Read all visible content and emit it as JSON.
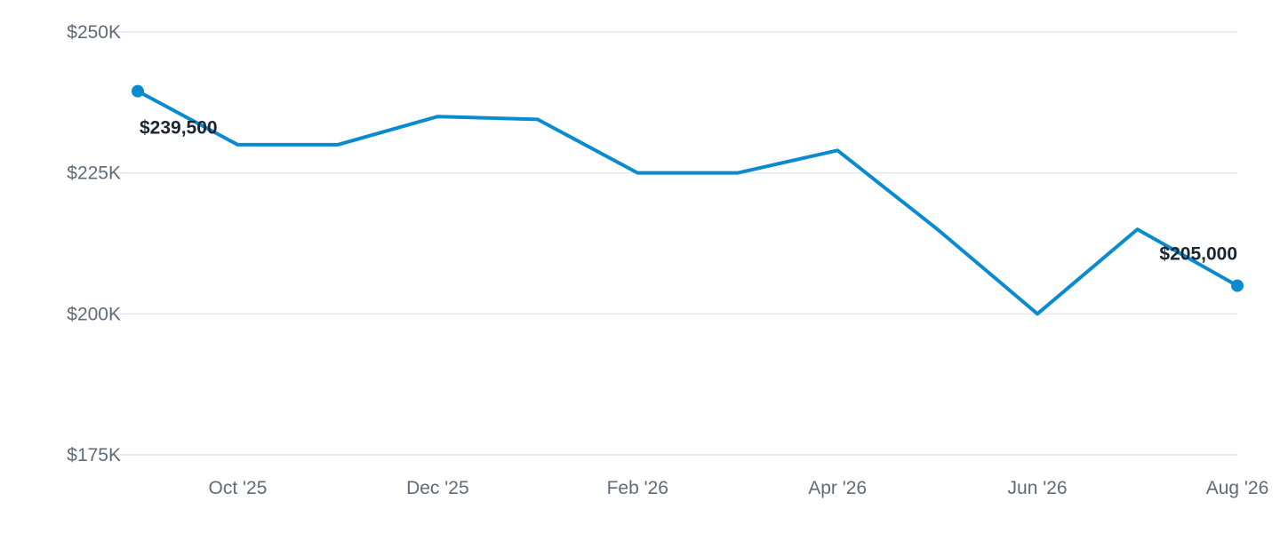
{
  "chart_data": {
    "type": "line",
    "title": "",
    "xlabel": "",
    "ylabel": "",
    "x": [
      "2025-09",
      "2025-10",
      "2025-11",
      "2025-12",
      "2026-01",
      "2026-02",
      "2026-03",
      "2026-04",
      "2026-05",
      "2026-06",
      "2026-07",
      "2026-08"
    ],
    "series": [
      {
        "values": [
          239500,
          230000,
          230000,
          235000,
          234500,
          225000,
          225000,
          229000,
          215000,
          200000,
          215000,
          205000
        ]
      }
    ],
    "ylim": [
      175000,
      250000
    ],
    "yticks": [
      {
        "value": 250000,
        "label": "$250K"
      },
      {
        "value": 225000,
        "label": "$225K"
      },
      {
        "value": 200000,
        "label": "$200K"
      },
      {
        "value": 175000,
        "label": "$175K"
      }
    ],
    "xticks": [
      {
        "x": "2025-10",
        "label": "Oct '25"
      },
      {
        "x": "2025-12",
        "label": "Dec '25"
      },
      {
        "x": "2026-02",
        "label": "Feb '26"
      },
      {
        "x": "2026-04",
        "label": "Apr '26"
      },
      {
        "x": "2026-06",
        "label": "Jun '26"
      },
      {
        "x": "2026-08",
        "label": "Aug '26"
      }
    ],
    "data_labels": [
      {
        "x": "2025-09",
        "text": "$239,500"
      },
      {
        "x": "2026-08",
        "text": "$205,000"
      }
    ],
    "line_color": "#0a8bd0",
    "grid": true,
    "legend": "none"
  }
}
